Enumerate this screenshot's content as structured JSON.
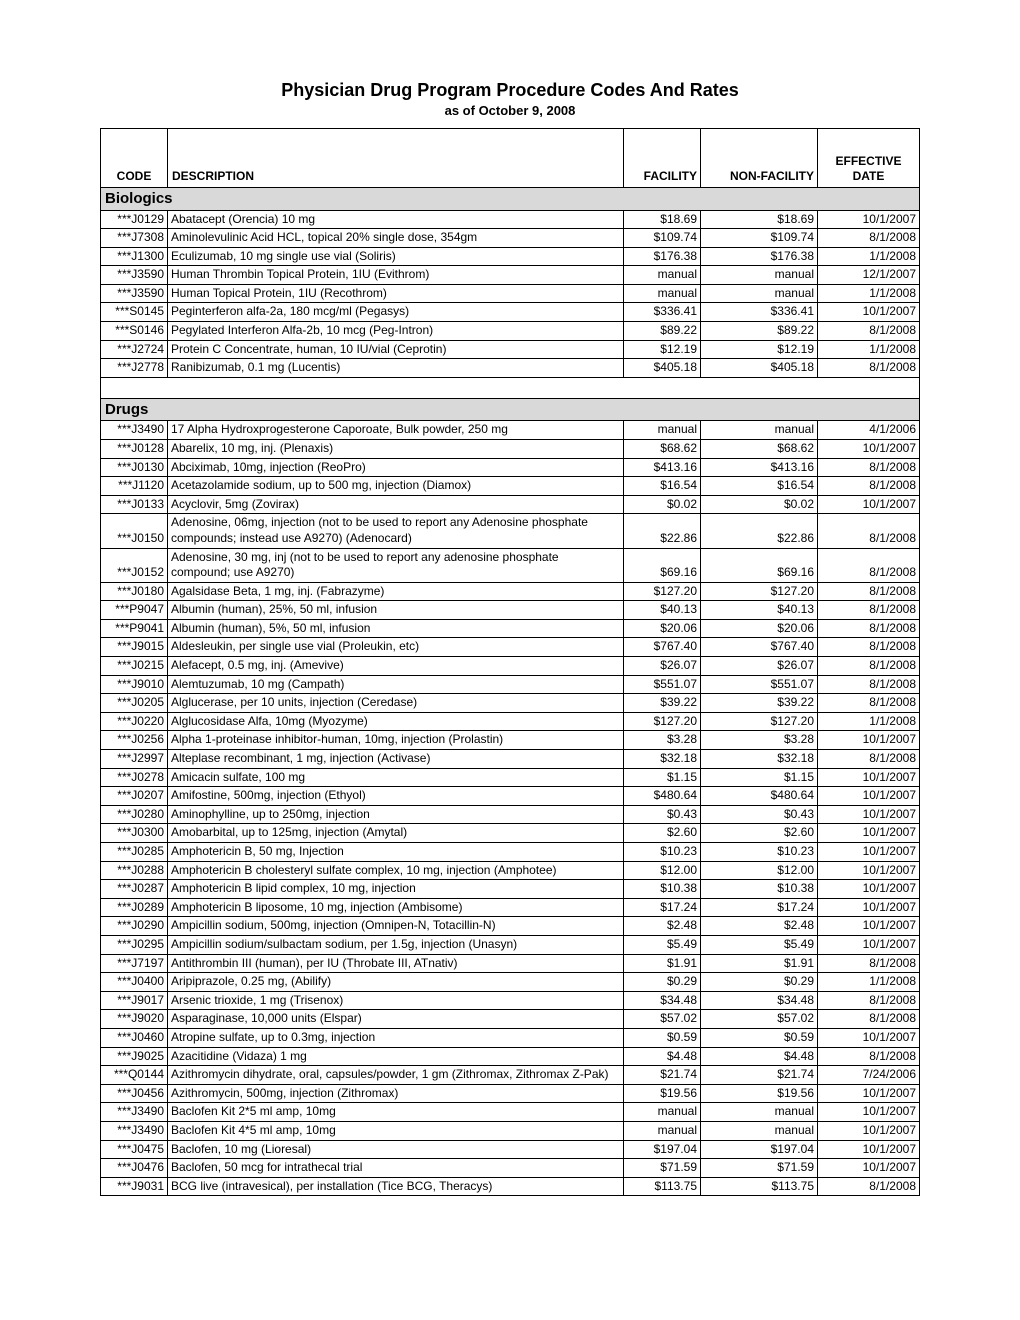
{
  "title": "Physician Drug Program Procedure Codes And Rates",
  "subtitle": "as of October 9, 2008",
  "columns": {
    "code": "CODE",
    "desc": "DESCRIPTION",
    "fac": "FACILITY",
    "nfac": "NON-FACILITY",
    "date": "EFFECTIVE DATE"
  },
  "sections": [
    {
      "name": "Biologics",
      "rows": [
        {
          "code": "***J0129",
          "desc": "Abatacept (Orencia) 10 mg",
          "fac": "$18.69",
          "nfac": "$18.69",
          "date": "10/1/2007"
        },
        {
          "code": "***J7308",
          "desc": "Aminolevulinic Acid HCL, topical 20% single dose, 354gm",
          "fac": "$109.74",
          "nfac": "$109.74",
          "date": "8/1/2008"
        },
        {
          "code": "***J1300",
          "desc": "Eculizumab, 10 mg single use vial (Soliris)",
          "fac": "$176.38",
          "nfac": "$176.38",
          "date": "1/1/2008"
        },
        {
          "code": "***J3590",
          "desc": "Human Thrombin Topical Protein, 1IU (Evithrom)",
          "fac": "manual",
          "nfac": "manual",
          "date": "12/1/2007"
        },
        {
          "code": "***J3590",
          "desc": "Human Topical Protein, 1IU (Recothrom)",
          "fac": "manual",
          "nfac": "manual",
          "date": "1/1/2008"
        },
        {
          "code": "***S0145",
          "desc": "Peginterferon alfa-2a, 180 mcg/ml (Pegasys)",
          "fac": "$336.41",
          "nfac": "$336.41",
          "date": "10/1/2007"
        },
        {
          "code": "***S0146",
          "desc": "Pegylated Interferon Alfa-2b, 10 mcg (Peg-Intron)",
          "fac": "$89.22",
          "nfac": "$89.22",
          "date": "8/1/2008"
        },
        {
          "code": "***J2724",
          "desc": "Protein C Concentrate, human, 10 IU/vial (Ceprotin)",
          "fac": "$12.19",
          "nfac": "$12.19",
          "date": "1/1/2008"
        },
        {
          "code": "***J2778",
          "desc": "Ranibizumab, 0.1 mg (Lucentis)",
          "fac": "$405.18",
          "nfac": "$405.18",
          "date": "8/1/2008"
        }
      ]
    },
    {
      "name": "Drugs",
      "spacer_before": true,
      "rows": [
        {
          "code": "***J3490",
          "desc": "17 Alpha Hydroxprogesterone Caporoate, Bulk powder, 250 mg",
          "fac": "manual",
          "nfac": "manual",
          "date": "4/1/2006"
        },
        {
          "code": "***J0128",
          "desc": "Abarelix, 10 mg, inj. (Plenaxis)",
          "fac": "$68.62",
          "nfac": "$68.62",
          "date": "10/1/2007"
        },
        {
          "code": "***J0130",
          "desc": "Abciximab, 10mg, injection (ReoPro)",
          "fac": "$413.16",
          "nfac": "$413.16",
          "date": "8/1/2008"
        },
        {
          "code": "***J1120",
          "desc": "Acetazolamide sodium, up to 500 mg, injection (Diamox)",
          "fac": "$16.54",
          "nfac": "$16.54",
          "date": "8/1/2008"
        },
        {
          "code": "***J0133",
          "desc": "Acyclovir, 5mg (Zovirax)",
          "fac": "$0.02",
          "nfac": "$0.02",
          "date": "10/1/2007"
        },
        {
          "code": "***J0150",
          "desc": "Adenosine, 06mg, injection (not to be used to report any Adenosine phosphate compounds; instead use A9270)  (Adenocard)",
          "fac": "$22.86",
          "nfac": "$22.86",
          "date": "8/1/2008"
        },
        {
          "code": "***J0152",
          "desc": "Adenosine, 30 mg, inj (not to be used to report any adenosine phosphate compound; use A9270)",
          "fac": "$69.16",
          "nfac": "$69.16",
          "date": "8/1/2008"
        },
        {
          "code": "***J0180",
          "desc": "Agalsidase Beta, 1 mg, inj. (Fabrazyme)",
          "fac": "$127.20",
          "nfac": "$127.20",
          "date": "8/1/2008"
        },
        {
          "code": "***P9047",
          "desc": "Albumin (human), 25%, 50 ml, infusion",
          "fac": "$40.13",
          "nfac": "$40.13",
          "date": "8/1/2008"
        },
        {
          "code": "***P9041",
          "desc": "Albumin (human), 5%, 50 ml, infusion",
          "fac": "$20.06",
          "nfac": "$20.06",
          "date": "8/1/2008"
        },
        {
          "code": "***J9015",
          "desc": "Aldesleukin, per single use vial (Proleukin, etc)",
          "fac": "$767.40",
          "nfac": "$767.40",
          "date": "8/1/2008"
        },
        {
          "code": "***J0215",
          "desc": "Alefacept, 0.5 mg, inj. (Amevive)",
          "fac": "$26.07",
          "nfac": "$26.07",
          "date": "8/1/2008"
        },
        {
          "code": "***J9010",
          "desc": "Alemtuzumab, 10 mg (Campath)",
          "fac": "$551.07",
          "nfac": "$551.07",
          "date": "8/1/2008"
        },
        {
          "code": "***J0205",
          "desc": "Alglucerase, per 10 units, injection (Ceredase)",
          "fac": "$39.22",
          "nfac": "$39.22",
          "date": "8/1/2008"
        },
        {
          "code": "***J0220",
          "desc": "Alglucosidase Alfa, 10mg (Myozyme)",
          "fac": "$127.20",
          "nfac": "$127.20",
          "date": "1/1/2008"
        },
        {
          "code": "***J0256",
          "desc": "Alpha 1-proteinase inhibitor-human, 10mg, injection (Prolastin)",
          "fac": "$3.28",
          "nfac": "$3.28",
          "date": "10/1/2007"
        },
        {
          "code": "***J2997",
          "desc": "Alteplase recombinant, 1 mg, injection (Activase)",
          "fac": "$32.18",
          "nfac": "$32.18",
          "date": "8/1/2008"
        },
        {
          "code": "***J0278",
          "desc": "Amicacin sulfate, 100 mg",
          "fac": "$1.15",
          "nfac": "$1.15",
          "date": "10/1/2007"
        },
        {
          "code": "***J0207",
          "desc": "Amifostine, 500mg, injection (Ethyol)",
          "fac": "$480.64",
          "nfac": "$480.64",
          "date": "10/1/2007"
        },
        {
          "code": "***J0280",
          "desc": "Aminophylline, up to 250mg, injection",
          "fac": "$0.43",
          "nfac": "$0.43",
          "date": "10/1/2007"
        },
        {
          "code": "***J0300",
          "desc": "Amobarbital, up to 125mg, injection (Amytal)",
          "fac": "$2.60",
          "nfac": "$2.60",
          "date": "10/1/2007"
        },
        {
          "code": "***J0285",
          "desc": "Amphotericin  B, 50 mg, Injection",
          "fac": "$10.23",
          "nfac": "$10.23",
          "date": "10/1/2007"
        },
        {
          "code": "***J0288",
          "desc": "Amphotericin B cholesteryl sulfate complex, 10 mg, injection (Amphotee)",
          "fac": "$12.00",
          "nfac": "$12.00",
          "date": "10/1/2007"
        },
        {
          "code": "***J0287",
          "desc": "Amphotericin B lipid complex, 10 mg, injection",
          "fac": "$10.38",
          "nfac": "$10.38",
          "date": "10/1/2007"
        },
        {
          "code": "***J0289",
          "desc": "Amphotericin B liposome, 10 mg, injection (Ambisome)",
          "fac": "$17.24",
          "nfac": "$17.24",
          "date": "10/1/2007"
        },
        {
          "code": "***J0290",
          "desc": "Ampicillin sodium, 500mg, injection (Omnipen-N, Totacillin-N)",
          "fac": "$2.48",
          "nfac": "$2.48",
          "date": "10/1/2007"
        },
        {
          "code": "***J0295",
          "desc": "Ampicillin sodium/sulbactam sodium, per 1.5g, injection (Unasyn)",
          "fac": "$5.49",
          "nfac": "$5.49",
          "date": "10/1/2007"
        },
        {
          "code": "***J7197",
          "desc": "Antithrombin III (human), per IU (Throbate III, ATnativ)",
          "fac": "$1.91",
          "nfac": "$1.91",
          "date": "8/1/2008"
        },
        {
          "code": "***J0400",
          "desc": "Aripiprazole, 0.25 mg, (Abilify)",
          "fac": "$0.29",
          "nfac": "$0.29",
          "date": "1/1/2008"
        },
        {
          "code": "***J9017",
          "desc": "Arsenic trioxide, 1 mg (Trisenox)",
          "fac": "$34.48",
          "nfac": "$34.48",
          "date": "8/1/2008"
        },
        {
          "code": "***J9020",
          "desc": "Asparaginase, 10,000 units (Elspar)",
          "fac": "$57.02",
          "nfac": "$57.02",
          "date": "8/1/2008"
        },
        {
          "code": "***J0460",
          "desc": "Atropine sulfate, up to 0.3mg, injection",
          "fac": "$0.59",
          "nfac": "$0.59",
          "date": "10/1/2007"
        },
        {
          "code": "***J9025",
          "desc": "Azacitidine (Vidaza) 1 mg",
          "fac": "$4.48",
          "nfac": "$4.48",
          "date": "8/1/2008"
        },
        {
          "code": "***Q0144",
          "desc": "Azithromycin dihydrate, oral, capsules/powder, 1 gm (Zithromax, Zithromax Z-Pak)",
          "fac": "$21.74",
          "nfac": "$21.74",
          "date": "7/24/2006"
        },
        {
          "code": "***J0456",
          "desc": "Azithromycin, 500mg, injection (Zithromax)",
          "fac": "$19.56",
          "nfac": "$19.56",
          "date": "10/1/2007"
        },
        {
          "code": "***J3490",
          "desc": "Baclofen Kit 2*5 ml amp, 10mg",
          "fac": "manual",
          "nfac": "manual",
          "date": "10/1/2007"
        },
        {
          "code": "***J3490",
          "desc": "Baclofen Kit 4*5 ml amp, 10mg",
          "fac": "manual",
          "nfac": "manual",
          "date": "10/1/2007"
        },
        {
          "code": "***J0475",
          "desc": "Baclofen, 10 mg (Lioresal)",
          "fac": "$197.04",
          "nfac": "$197.04",
          "date": "10/1/2007"
        },
        {
          "code": "***J0476",
          "desc": "Baclofen, 50 mcg for intrathecal trial",
          "fac": "$71.59",
          "nfac": "$71.59",
          "date": "10/1/2007"
        },
        {
          "code": "***J9031",
          "desc": "BCG live (intravesical), per installation (Tice BCG, Theracys)",
          "fac": "$113.75",
          "nfac": "$113.75",
          "date": "8/1/2008"
        }
      ]
    }
  ]
}
